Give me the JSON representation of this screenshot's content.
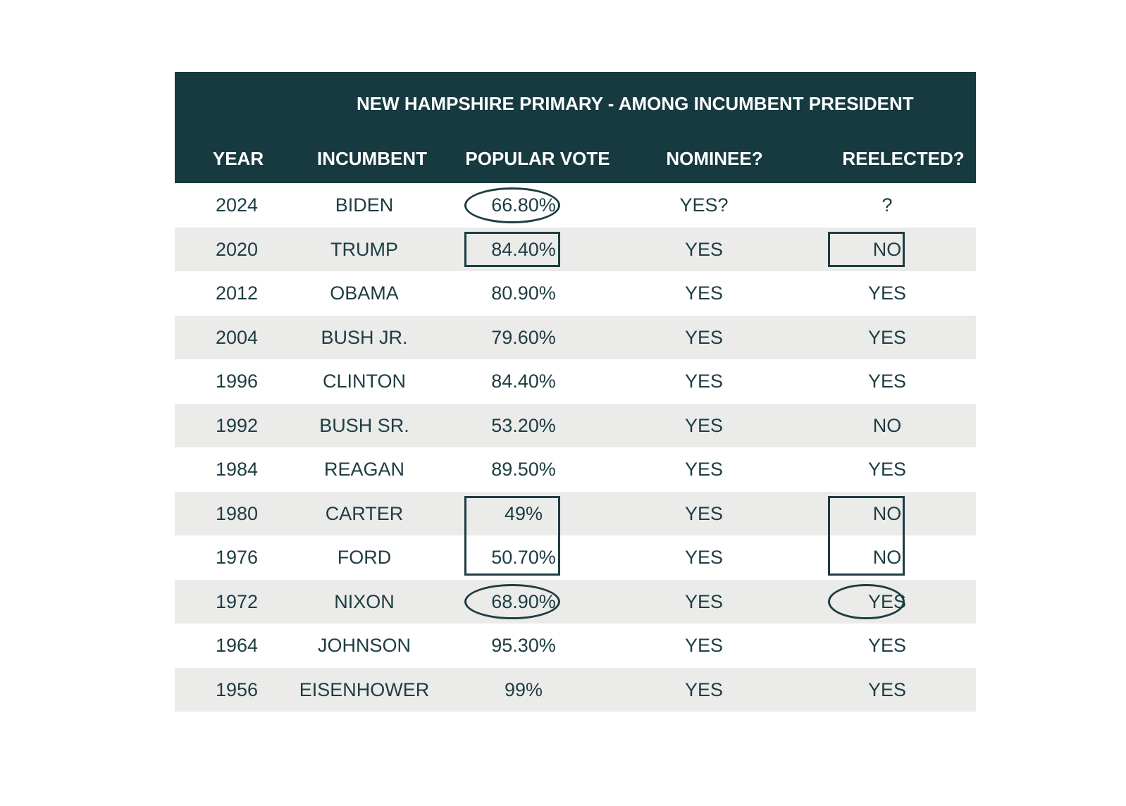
{
  "table": {
    "title": "NEW HAMPSHIRE PRIMARY - AMONG INCUMBENT PRESIDENT",
    "headers": [
      "YEAR",
      "INCUMBENT",
      "POPULAR VOTE",
      "NOMINEE?",
      "REELECTED?"
    ],
    "rows": [
      [
        "2024",
        "BIDEN",
        "66.80%",
        "YES?",
        "?"
      ],
      [
        "2020",
        "TRUMP",
        "84.40%",
        "YES",
        "NO"
      ],
      [
        "2012",
        "OBAMA",
        "80.90%",
        "YES",
        "YES"
      ],
      [
        "2004",
        "BUSH JR.",
        "79.60%",
        "YES",
        "YES"
      ],
      [
        "1996",
        "CLINTON",
        "84.40%",
        "YES",
        "YES"
      ],
      [
        "1992",
        "BUSH SR.",
        "53.20%",
        "YES",
        "NO"
      ],
      [
        "1984",
        "REAGAN",
        "89.50%",
        "YES",
        "YES"
      ],
      [
        "1980",
        "CARTER",
        "49%",
        "YES",
        "NO"
      ],
      [
        "1976",
        "FORD",
        "50.70%",
        "YES",
        "NO"
      ],
      [
        "1972",
        "NIXON",
        "68.90%",
        "YES",
        "YES"
      ],
      [
        "1964",
        "JOHNSON",
        "95.30%",
        "YES",
        "YES"
      ],
      [
        "1956",
        "EISENHOWER",
        "99%",
        "YES",
        "YES"
      ]
    ]
  }
}
